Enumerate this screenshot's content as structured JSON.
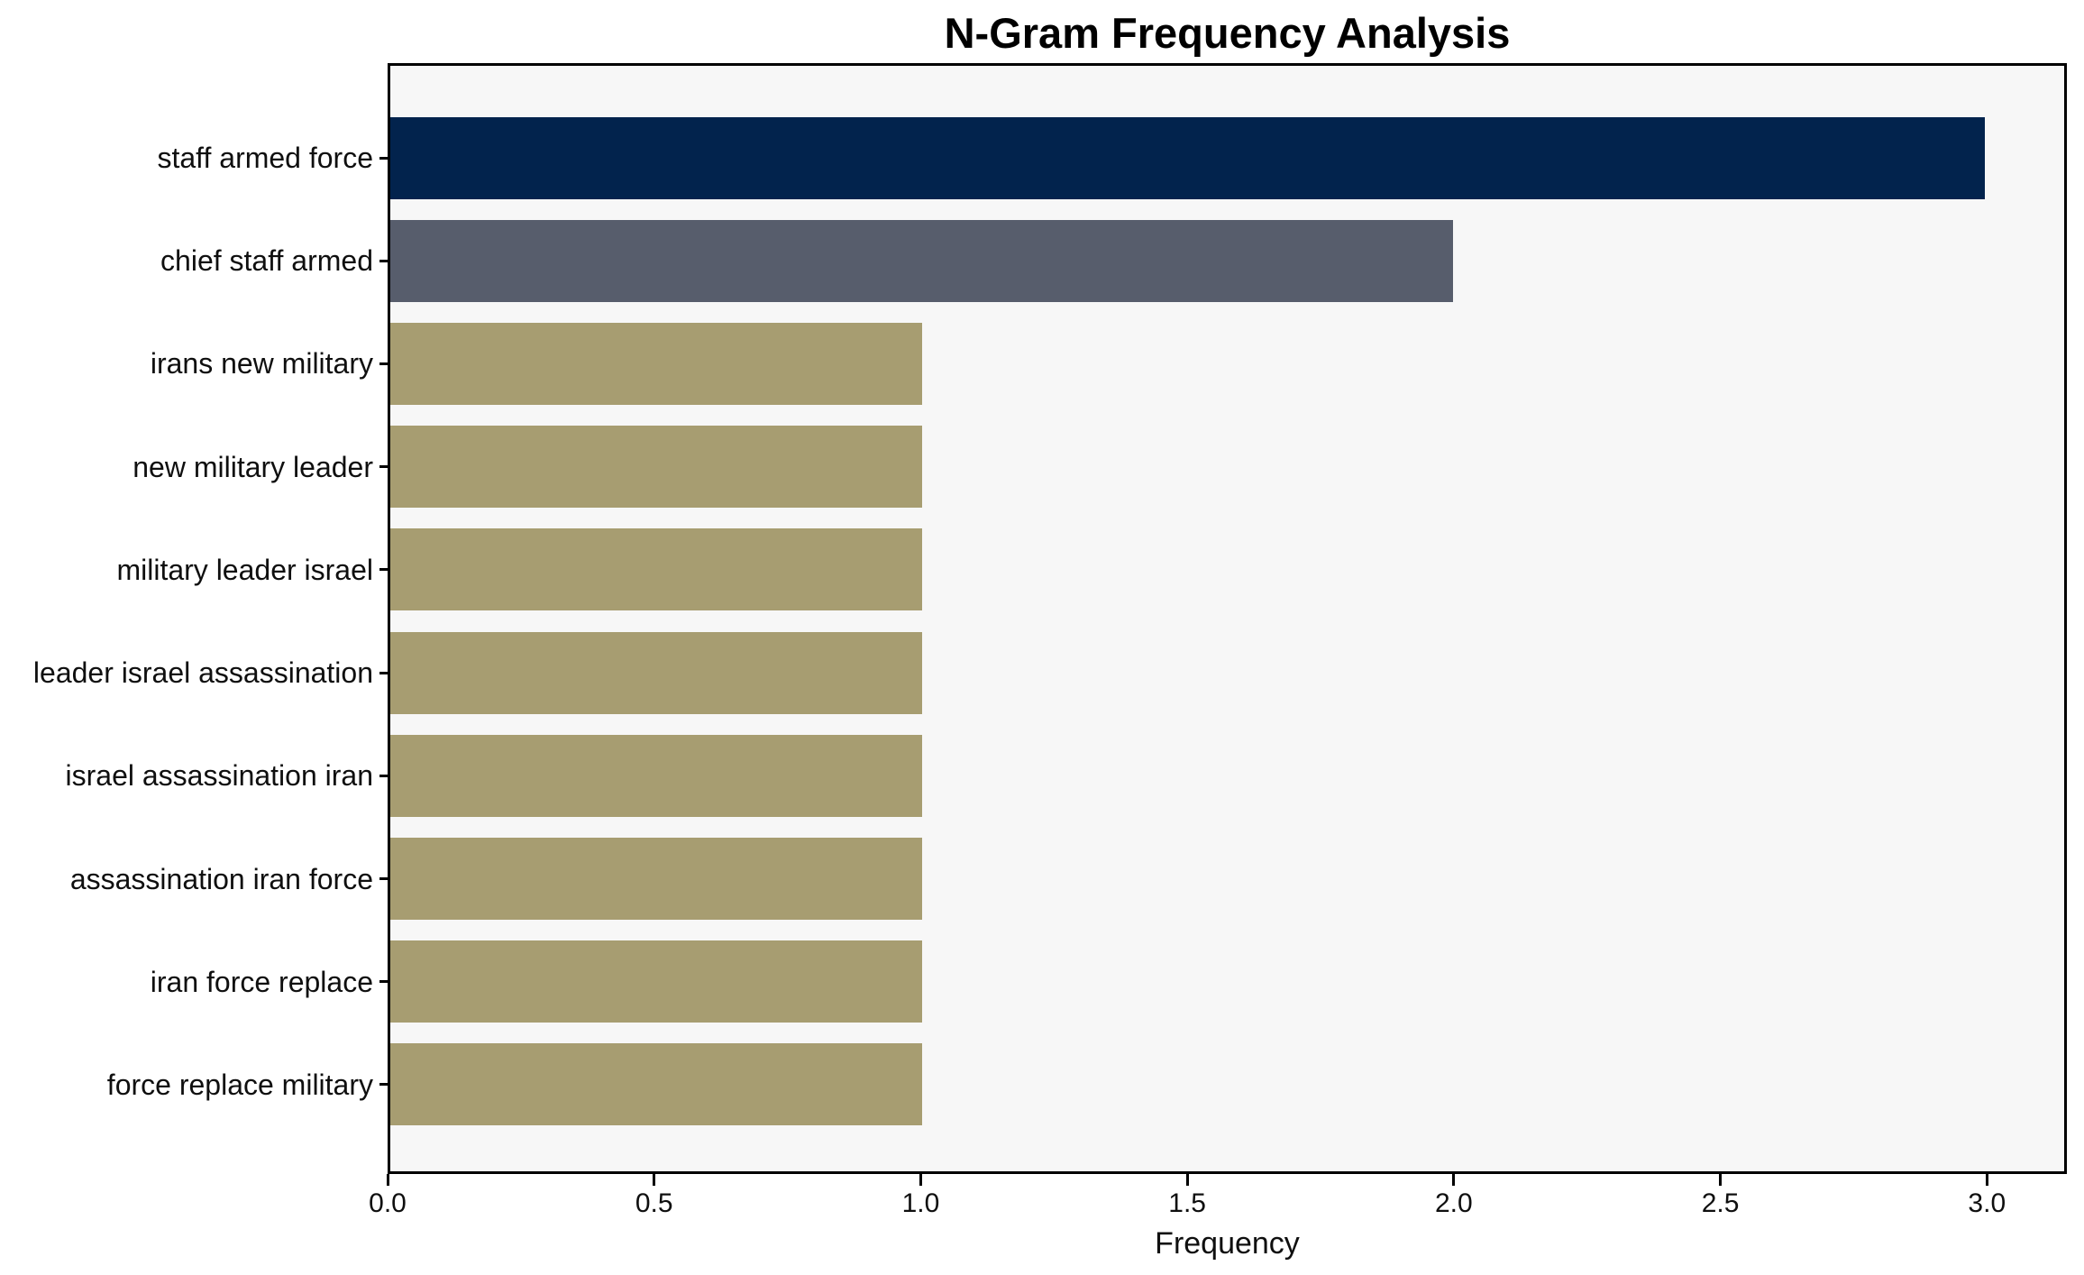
{
  "chart_data": {
    "type": "bar",
    "orientation": "horizontal",
    "title": "N-Gram Frequency Analysis",
    "xlabel": "Frequency",
    "ylabel": "",
    "categories": [
      "staff armed force",
      "chief staff armed",
      "irans new military",
      "new military leader",
      "military leader israel",
      "leader israel assassination",
      "israel assassination iran",
      "assassination iran force",
      "iran force replace",
      "force replace military"
    ],
    "values": [
      3,
      2,
      1,
      1,
      1,
      1,
      1,
      1,
      1,
      1
    ],
    "bar_colors": [
      "#02234D",
      "#575D6C",
      "#A79D71",
      "#A79D71",
      "#A79D71",
      "#A79D71",
      "#A79D71",
      "#A79D71",
      "#A79D71",
      "#A79D71"
    ],
    "xticks": [
      "0.0",
      "0.5",
      "1.0",
      "1.5",
      "2.0",
      "2.5",
      "3.0"
    ],
    "xtick_values": [
      0,
      0.5,
      1.0,
      1.5,
      2.0,
      2.5,
      3.0
    ],
    "xlim": [
      0,
      3.15
    ],
    "grid": false,
    "plot_background": "#F7F7F7",
    "figure_background": "#FFFFFF"
  }
}
